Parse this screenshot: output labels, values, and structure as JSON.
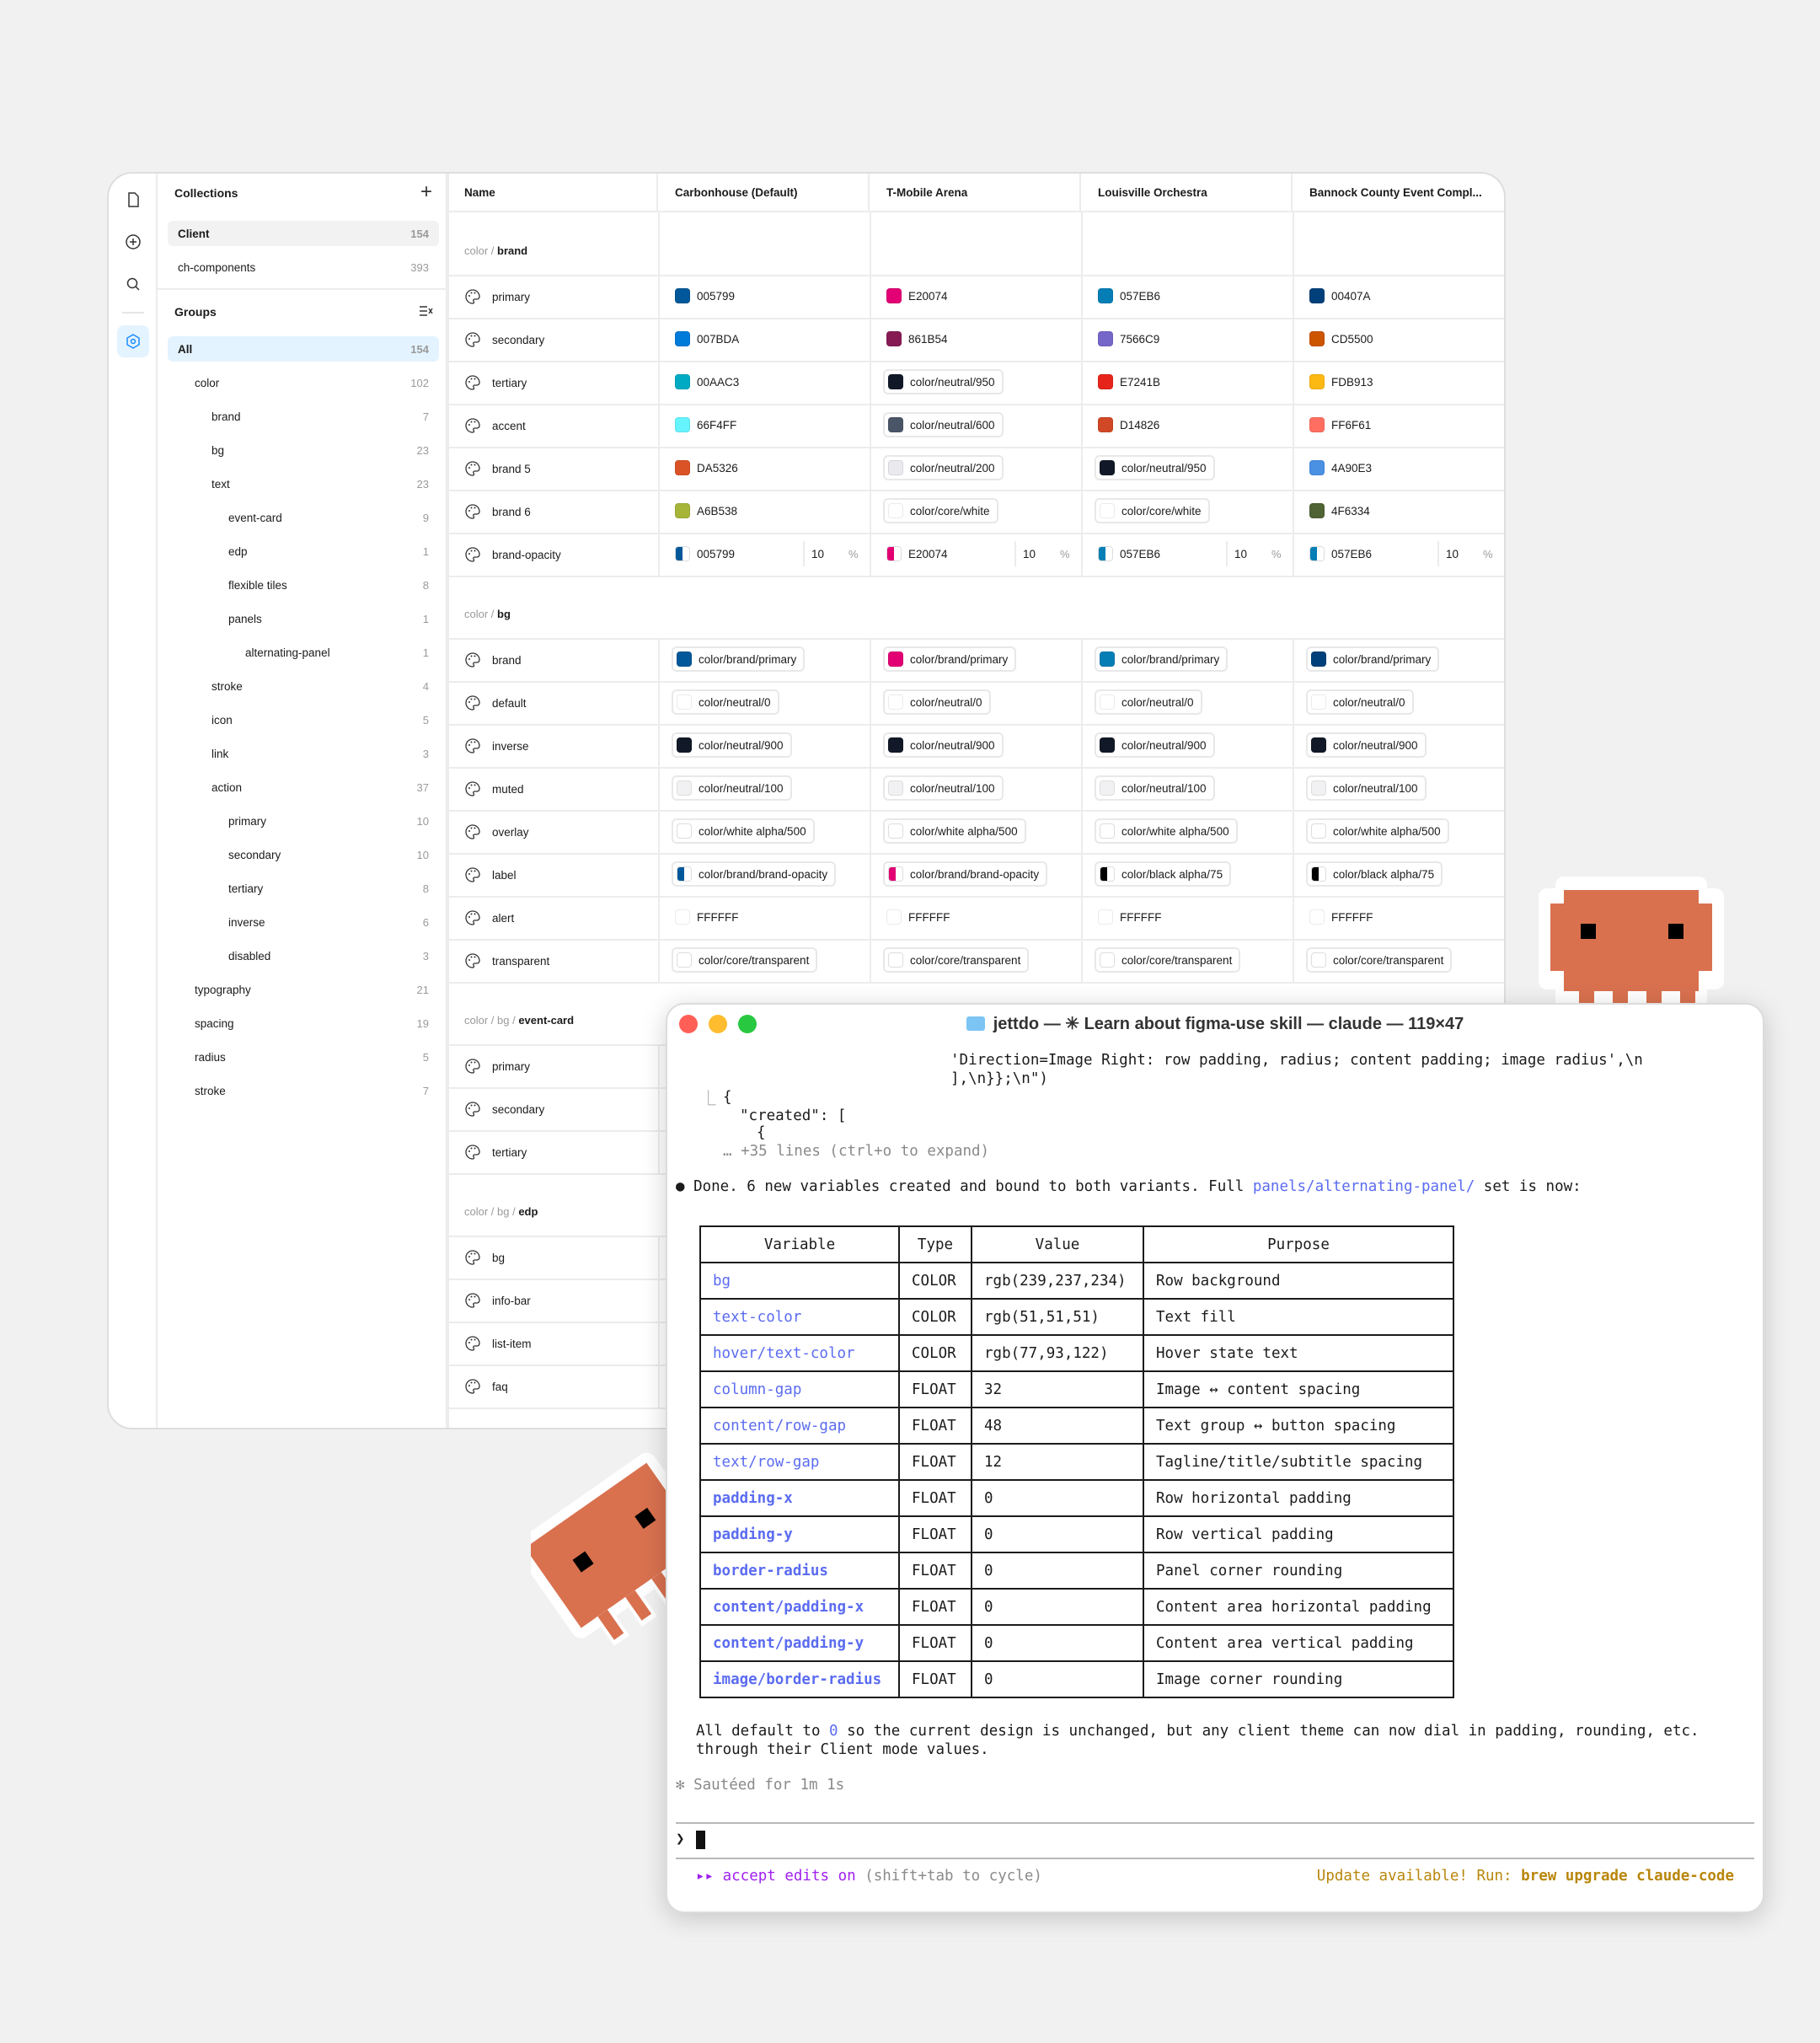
{
  "collections": {
    "title": "Collections",
    "items": [
      {
        "name": "Client",
        "count": "154"
      },
      {
        "name": "ch-components",
        "count": "393"
      }
    ]
  },
  "groups": {
    "title": "Groups",
    "items": [
      {
        "name": "All",
        "count": "154",
        "level": 0
      },
      {
        "name": "color",
        "count": "102",
        "level": 1
      },
      {
        "name": "brand",
        "count": "7",
        "level": 2
      },
      {
        "name": "bg",
        "count": "23",
        "level": 2
      },
      {
        "name": "text",
        "count": "23",
        "level": 2
      },
      {
        "name": "event-card",
        "count": "9",
        "level": 3
      },
      {
        "name": "edp",
        "count": "1",
        "level": 3
      },
      {
        "name": "flexible tiles",
        "count": "8",
        "level": 3
      },
      {
        "name": "panels",
        "count": "1",
        "level": 3
      },
      {
        "name": "alternating-panel",
        "count": "1",
        "level": 4
      },
      {
        "name": "stroke",
        "count": "4",
        "level": 2
      },
      {
        "name": "icon",
        "count": "5",
        "level": 2
      },
      {
        "name": "link",
        "count": "3",
        "level": 2
      },
      {
        "name": "action",
        "count": "37",
        "level": 2
      },
      {
        "name": "primary",
        "count": "10",
        "level": 3
      },
      {
        "name": "secondary",
        "count": "10",
        "level": 3
      },
      {
        "name": "tertiary",
        "count": "8",
        "level": 3
      },
      {
        "name": "inverse",
        "count": "6",
        "level": 3
      },
      {
        "name": "disabled",
        "count": "3",
        "level": 3
      },
      {
        "name": "typography",
        "count": "21",
        "level": 1
      },
      {
        "name": "spacing",
        "count": "19",
        "level": 1
      },
      {
        "name": "radius",
        "count": "5",
        "level": 1
      },
      {
        "name": "stroke",
        "count": "7",
        "level": 1
      }
    ]
  },
  "headers": [
    "Name",
    "Carbonhouse (Default)",
    "T-Mobile Arena",
    "Louisville Orchestra",
    "Bannock County Event Compl..."
  ],
  "sections": [
    {
      "prefix": "color / ",
      "name": "brand",
      "rows": [
        {
          "name": "primary",
          "cells": [
            {
              "t": "005799",
              "c": "#005799"
            },
            {
              "t": "E20074",
              "c": "#E20074"
            },
            {
              "t": "057EB6",
              "c": "#057EB6"
            },
            {
              "t": "00407A",
              "c": "#00407A"
            }
          ]
        },
        {
          "name": "secondary",
          "cells": [
            {
              "t": "007BDA",
              "c": "#007BDA"
            },
            {
              "t": "861B54",
              "c": "#861B54"
            },
            {
              "t": "7566C9",
              "c": "#7566C9"
            },
            {
              "t": "CD5500",
              "c": "#CD5500"
            }
          ]
        },
        {
          "name": "tertiary",
          "cells": [
            {
              "t": "00AAC3",
              "c": "#00AAC3"
            },
            {
              "t": "color/neutral/950",
              "c": "#111827",
              "p": 1
            },
            {
              "t": "E7241B",
              "c": "#E7241B"
            },
            {
              "t": "FDB913",
              "c": "#FDB913"
            }
          ]
        },
        {
          "name": "accent",
          "cells": [
            {
              "t": "66F4FF",
              "c": "#66F4FF"
            },
            {
              "t": "color/neutral/600",
              "c": "#4a5568",
              "p": 1
            },
            {
              "t": "D14826",
              "c": "#D14826"
            },
            {
              "t": "FF6F61",
              "c": "#FF6F61"
            }
          ]
        },
        {
          "name": "brand 5",
          "cells": [
            {
              "t": "DA5326",
              "c": "#DA5326"
            },
            {
              "t": "color/neutral/200",
              "c": "#e9e9ee",
              "p": 1
            },
            {
              "t": "color/neutral/950",
              "c": "#111827",
              "p": 1
            },
            {
              "t": "4A90E3",
              "c": "#4A90E3"
            }
          ]
        },
        {
          "name": "brand 6",
          "cells": [
            {
              "t": "A6B538",
              "c": "#A6B538"
            },
            {
              "t": "color/core/white",
              "c": "#ffffff",
              "p": 1
            },
            {
              "t": "color/core/white",
              "c": "#ffffff",
              "p": 1
            },
            {
              "t": "4F6334",
              "c": "#4F6334"
            }
          ]
        },
        {
          "name": "brand-opacity",
          "cells": [
            {
              "t": "005799",
              "c": "#005799",
              "h": 1,
              "n": "10"
            },
            {
              "t": "E20074",
              "c": "#E20074",
              "h": 1,
              "n": "10"
            },
            {
              "t": "057EB6",
              "c": "#057EB6",
              "h": 1,
              "n": "10"
            },
            {
              "t": "057EB6",
              "c": "#057EB6",
              "h": 1,
              "n": "10"
            }
          ]
        }
      ]
    },
    {
      "prefix": "color / ",
      "name": "bg",
      "rows": [
        {
          "name": "brand",
          "cells": [
            {
              "t": "color/brand/primary",
              "c": "#005799",
              "p": 1
            },
            {
              "t": "color/brand/primary",
              "c": "#E20074",
              "p": 1
            },
            {
              "t": "color/brand/primary",
              "c": "#057EB6",
              "p": 1
            },
            {
              "t": "color/brand/primary",
              "c": "#00407A",
              "p": 1
            }
          ]
        },
        {
          "name": "default",
          "cells": [
            {
              "t": "color/neutral/0",
              "c": "#ffffff",
              "p": 1
            },
            {
              "t": "color/neutral/0",
              "c": "#ffffff",
              "p": 1
            },
            {
              "t": "color/neutral/0",
              "c": "#ffffff",
              "p": 1
            },
            {
              "t": "color/neutral/0",
              "c": "#ffffff",
              "p": 1
            }
          ]
        },
        {
          "name": "inverse",
          "cells": [
            {
              "t": "color/neutral/900",
              "c": "#111827",
              "p": 1
            },
            {
              "t": "color/neutral/900",
              "c": "#111827",
              "p": 1
            },
            {
              "t": "color/neutral/900",
              "c": "#111827",
              "p": 1
            },
            {
              "t": "color/neutral/900",
              "c": "#111827",
              "p": 1
            }
          ]
        },
        {
          "name": "muted",
          "cells": [
            {
              "t": "color/neutral/100",
              "c": "#f1f1f4",
              "p": 1
            },
            {
              "t": "color/neutral/100",
              "c": "#f1f1f4",
              "p": 1
            },
            {
              "t": "color/neutral/100",
              "c": "#f1f1f4",
              "p": 1
            },
            {
              "t": "color/neutral/100",
              "c": "#f1f1f4",
              "p": 1
            }
          ]
        },
        {
          "name": "overlay",
          "cells": [
            {
              "t": "color/white alpha/500",
              "c": "#ffffff",
              "p": 1,
              "h": 1
            },
            {
              "t": "color/white alpha/500",
              "c": "#ffffff",
              "p": 1,
              "h": 1
            },
            {
              "t": "color/white alpha/500",
              "c": "#ffffff",
              "p": 1,
              "h": 1
            },
            {
              "t": "color/white alpha/500",
              "c": "#ffffff",
              "p": 1,
              "h": 1
            }
          ]
        },
        {
          "name": "label",
          "cells": [
            {
              "t": "color/brand/brand-opacity",
              "c": "#005799",
              "p": 1,
              "h": 1
            },
            {
              "t": "color/brand/brand-opacity",
              "c": "#E20074",
              "p": 1,
              "h": 1
            },
            {
              "t": "color/black alpha/75",
              "c": "#000000",
              "p": 1,
              "h": 1
            },
            {
              "t": "color/black alpha/75",
              "c": "#000000",
              "p": 1,
              "h": 1
            }
          ]
        },
        {
          "name": "alert",
          "cells": [
            {
              "t": "FFFFFF",
              "c": "#ffffff"
            },
            {
              "t": "FFFFFF",
              "c": "#ffffff"
            },
            {
              "t": "FFFFFF",
              "c": "#ffffff"
            },
            {
              "t": "FFFFFF",
              "c": "#ffffff"
            }
          ]
        },
        {
          "name": "transparent",
          "cells": [
            {
              "t": "color/core/transparent",
              "c": "#ffffff",
              "p": 1,
              "h": 1
            },
            {
              "t": "color/core/transparent",
              "c": "#ffffff",
              "p": 1,
              "h": 1
            },
            {
              "t": "color/core/transparent",
              "c": "#ffffff",
              "p": 1,
              "h": 1
            },
            {
              "t": "color/core/transparent",
              "c": "#ffffff",
              "p": 1,
              "h": 1
            }
          ]
        }
      ]
    },
    {
      "prefix": "color / bg / ",
      "name": "event-card",
      "rows": [
        {
          "name": "primary",
          "cells": []
        },
        {
          "name": "secondary",
          "cells": []
        },
        {
          "name": "tertiary",
          "cells": []
        }
      ]
    },
    {
      "prefix": "color / bg / ",
      "name": "edp",
      "rows": [
        {
          "name": "bg",
          "cells": []
        },
        {
          "name": "info-bar",
          "cells": []
        },
        {
          "name": "list-item",
          "cells": []
        },
        {
          "name": "faq",
          "cells": []
        }
      ]
    }
  ],
  "terminal": {
    "title": "jettdo — ✳ Learn about figma-use skill — claude — 119×47",
    "lines": [
      "'Direction=Image Right: row padding, radius; content padding; image radius',\\n",
      "],\\n}};\\n\")",
      "\"created\": [",
      "{",
      "+35 lines (ctrl+o to expand)"
    ],
    "done_text": "Done. 6 new variables created and bound to both variants. Full ",
    "done_link": "panels/alternating-panel/",
    "done_tail": " set is now:",
    "table_headers": [
      "Variable",
      "Type",
      "Value",
      "Purpose"
    ],
    "table_rows": [
      [
        "bg",
        "COLOR",
        "rgb(239,237,234)",
        "Row background"
      ],
      [
        "text-color",
        "COLOR",
        "rgb(51,51,51)",
        "Text fill"
      ],
      [
        "hover/text-color",
        "COLOR",
        "rgb(77,93,122)",
        "Hover state text"
      ],
      [
        "column-gap",
        "FLOAT",
        "32",
        "Image ↔ content spacing"
      ],
      [
        "content/row-gap",
        "FLOAT",
        "48",
        "Text group ↔ button spacing"
      ],
      [
        "text/row-gap",
        "FLOAT",
        "12",
        "Tagline/title/subtitle spacing"
      ],
      [
        "padding-x",
        "FLOAT",
        "0",
        "Row horizontal padding"
      ],
      [
        "padding-y",
        "FLOAT",
        "0",
        "Row vertical padding"
      ],
      [
        "border-radius",
        "FLOAT",
        "0",
        "Panel corner rounding"
      ],
      [
        "content/padding-x",
        "FLOAT",
        "0",
        "Content area horizontal padding"
      ],
      [
        "content/padding-y",
        "FLOAT",
        "0",
        "Content area vertical padding"
      ],
      [
        "image/border-radius",
        "FLOAT",
        "0",
        "Image corner rounding"
      ]
    ],
    "summary1a": "All default to ",
    "summary1b": "0",
    "summary1c": " so the current design is unchanged, but any client theme can now dial in padding, rounding, etc.",
    "summary2": "through their Client mode values.",
    "sauteed": "✻ Sautéed for 1m 1s",
    "prompt": "❯",
    "mode": "▸▸ accept edits on",
    "mode_hint": " (shift+tab to cycle)",
    "update": "Update available! Run: ",
    "update_cmd": "brew upgrade claude-code"
  }
}
